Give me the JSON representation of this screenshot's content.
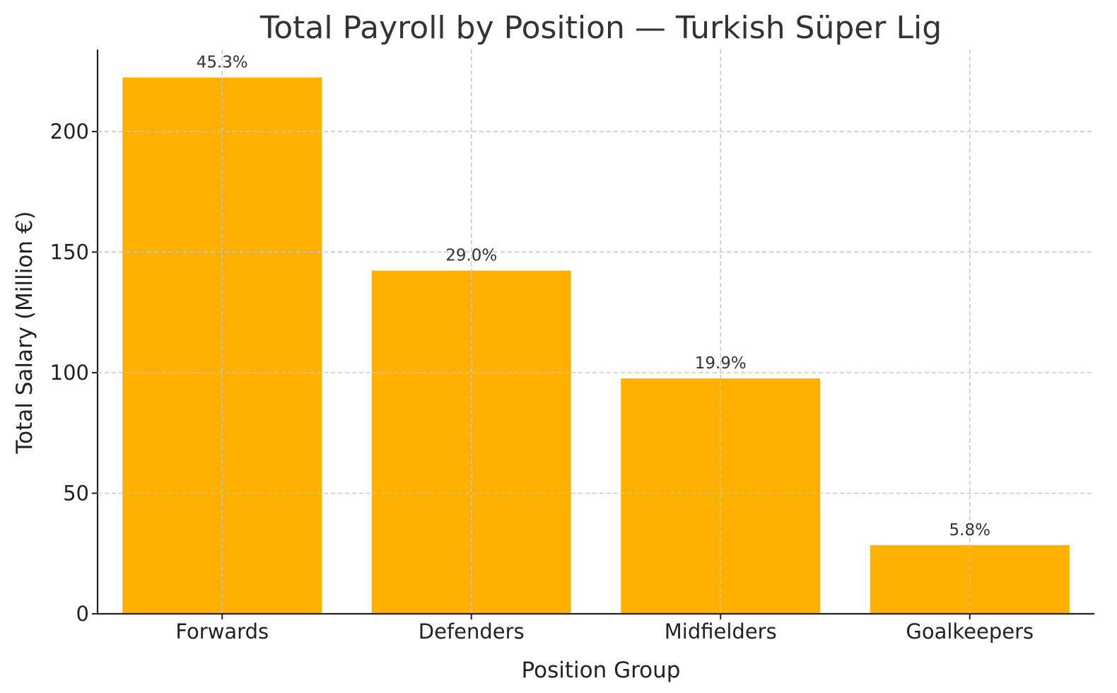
{
  "chart_data": {
    "type": "bar",
    "title": "Total Payroll by Position — Turkish Süper Lig",
    "xlabel": "Position Group",
    "ylabel": "Total Salary (Million €)",
    "categories": [
      "Forwards",
      "Defenders",
      "Midfielders",
      "Goalkeepers"
    ],
    "values": [
      222.4,
      142.3,
      97.6,
      28.5
    ],
    "data_labels": [
      "45.3%",
      "29.0%",
      "19.9%",
      "5.8%"
    ],
    "ylim": [
      0,
      234
    ],
    "yticks": [
      0,
      50,
      100,
      150,
      200
    ],
    "grid": true,
    "bar_color": "#FFB000"
  }
}
